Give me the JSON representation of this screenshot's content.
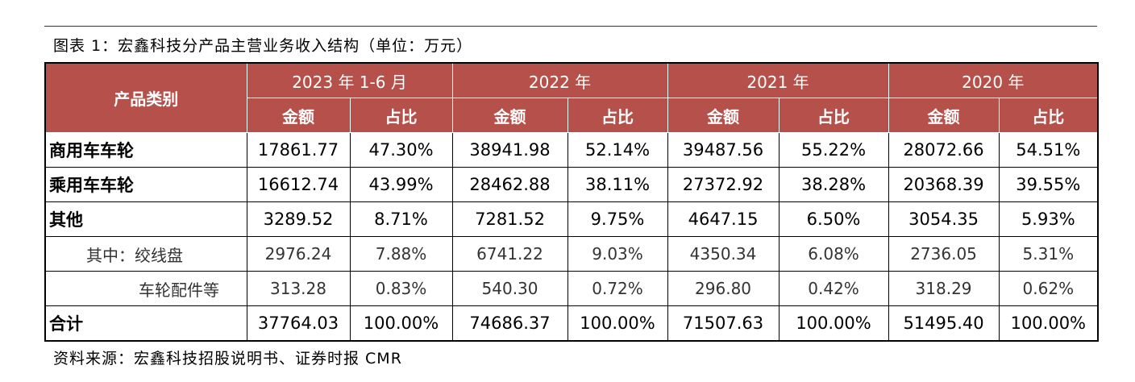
{
  "title": "图表 1：宏鑫科技分产品主营业务收入结构（单位：万元）",
  "table": {
    "corner": "产品类别",
    "years": [
      "2023 年 1-6 月",
      "2022 年",
      "2021 年",
      "2020 年"
    ],
    "subheaders": [
      "金额",
      "占比",
      "金额",
      "占比",
      "金额",
      "占比",
      "金额",
      "占比"
    ],
    "rows": [
      [
        "商用车车轮",
        "17861.77",
        "47.30%",
        "38941.98",
        "52.14%",
        "39487.56",
        "55.22%",
        "28072.66",
        "54.51%"
      ],
      [
        "乘用车车轮",
        "16612.74",
        "43.99%",
        "28462.88",
        "38.11%",
        "27372.92",
        "38.28%",
        "20368.39",
        "39.55%"
      ],
      [
        "其他",
        "3289.52",
        "8.71%",
        "7281.52",
        "9.75%",
        "4647.15",
        "6.50%",
        "3054.35",
        "5.93%"
      ],
      [
        "其中：绞线盘",
        "2976.24",
        "7.88%",
        "6741.22",
        "9.03%",
        "4350.34",
        "6.08%",
        "2736.05",
        "5.31%"
      ],
      [
        "车轮配件等",
        "313.28",
        "0.83%",
        "540.30",
        "0.72%",
        "296.80",
        "0.42%",
        "318.29",
        "0.62%"
      ],
      [
        "合计",
        "37764.03",
        "100.00%",
        "74686.37",
        "100.00%",
        "71507.63",
        "100.00%",
        "51495.40",
        "100.00%"
      ]
    ]
  },
  "source": "资料来源：宏鑫科技招股说明书、证券时报 CMR"
}
